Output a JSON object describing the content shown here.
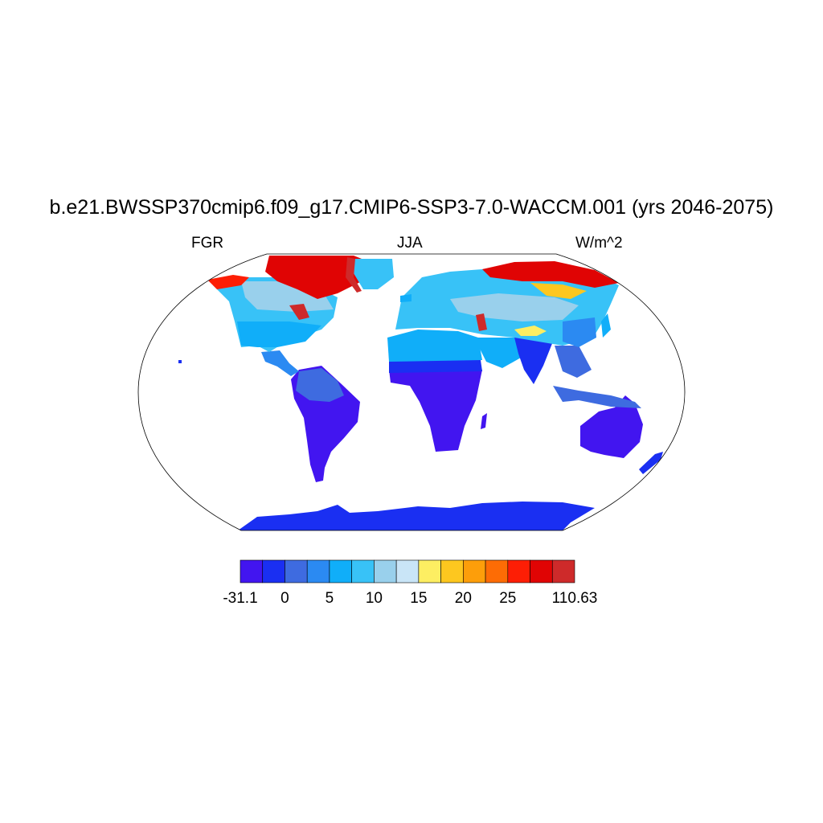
{
  "title": "b.e21.BWSSP370cmip6.f09_g17.CMIP6-SSP3-7.0-WACCM.001 (yrs 2046-2075)",
  "left_string": "FGR",
  "center_string": "JJA",
  "right_string": "W/m^2",
  "colorbar": {
    "colors": [
      "#4215f0",
      "#1a2ff2",
      "#3e6be0",
      "#2b8af2",
      "#10aef9",
      "#38c2f7",
      "#99d0ec",
      "#c9e5f7",
      "#fdee62",
      "#fdc71f",
      "#fd9e0a",
      "#fd6c05",
      "#fd1e05",
      "#e00404",
      "#ce2a2a"
    ],
    "labels": [
      "-31.1",
      "0",
      "5",
      "10",
      "15",
      "20",
      "25",
      "110.63"
    ]
  },
  "chart_data": {
    "type": "heatmap",
    "title": "b.e21.BWSSP370cmip6.f09_g17.CMIP6-SSP3-7.0-WACCM.001 (yrs 2046-2075)",
    "variable": "FGR",
    "season": "JJA",
    "units": "W/m^2",
    "projection": "Robinson",
    "value_range": [
      -31.1,
      110.63
    ],
    "colorbar_labels": [
      "-31.1",
      "0",
      "5",
      "10",
      "15",
      "20",
      "25",
      "110.63"
    ],
    "regions": [
      {
        "name": "Antarctica",
        "level": 1
      },
      {
        "name": "Australia",
        "level": 0
      },
      {
        "name": "South America",
        "level": 1
      },
      {
        "name": "Central Africa",
        "level": 1
      },
      {
        "name": "North Africa",
        "level": 4
      },
      {
        "name": "Europe",
        "level": 4
      },
      {
        "name": "North America",
        "level": 5
      },
      {
        "name": "Siberia",
        "level": 6
      },
      {
        "name": "Greenland coast",
        "level": 14
      },
      {
        "name": "Canadian Arctic",
        "level": 13
      },
      {
        "name": "Northern Siberia",
        "level": 13
      },
      {
        "name": "Tibetan Plateau",
        "level": 8
      },
      {
        "name": "South/Southeast Asia",
        "level": 3
      }
    ]
  }
}
